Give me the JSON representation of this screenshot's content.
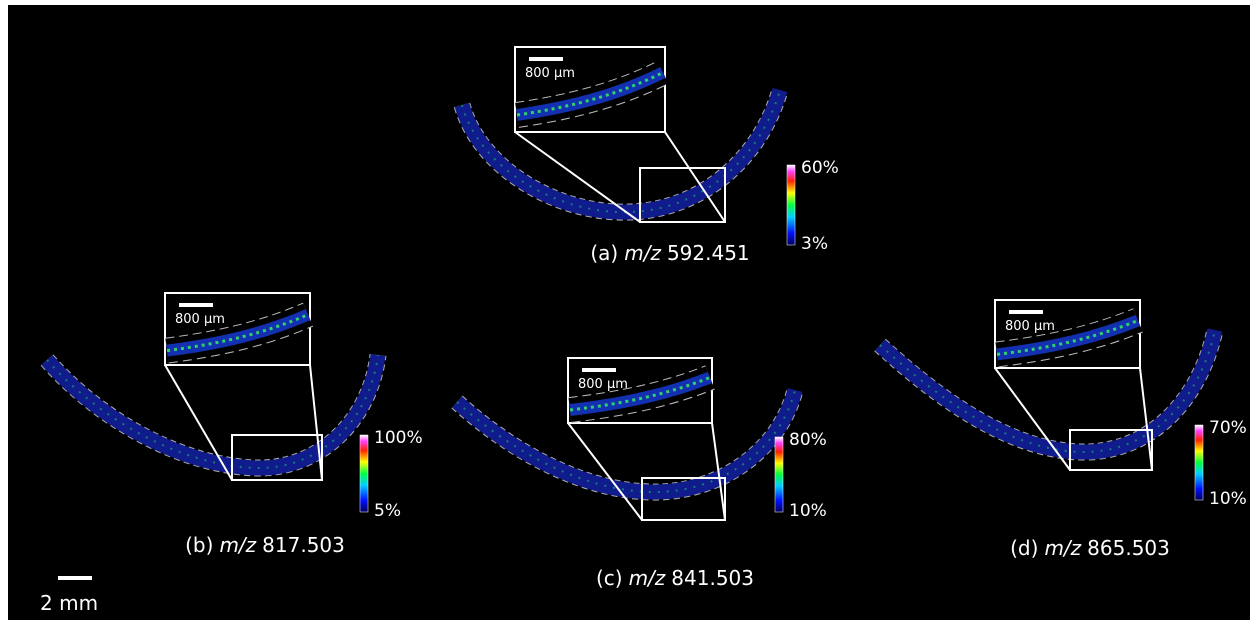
{
  "panels": [
    {
      "letter": "(a)",
      "mz_label": "m/z",
      "mz": "592.451",
      "scale_max": "60%",
      "scale_min": "3%",
      "inset_scale": "800 µm"
    },
    {
      "letter": "(b)",
      "mz_label": "m/z",
      "mz": "817.503",
      "scale_max": "100%",
      "scale_min": "5%",
      "inset_scale": "800 µm"
    },
    {
      "letter": "(c)",
      "mz_label": "m/z",
      "mz": "841.503",
      "scale_max": "80%",
      "scale_min": "10%",
      "inset_scale": "800 µm"
    },
    {
      "letter": "(d)",
      "mz_label": "m/z",
      "mz": "865.503",
      "scale_max": "70%",
      "scale_min": "10%",
      "inset_scale": "800 µm"
    }
  ],
  "scale_bar": "2 mm"
}
